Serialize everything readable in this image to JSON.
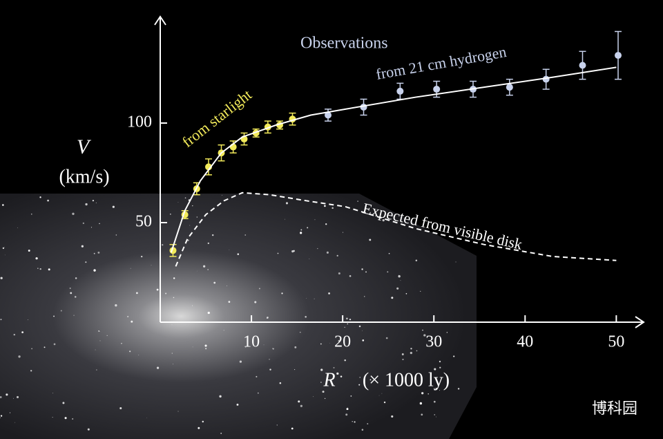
{
  "chart_data": {
    "type": "scatter",
    "annotation": "Observations",
    "ylabel": {
      "symbol": "V",
      "unit": "(km/s)"
    },
    "xlabel": {
      "symbol": "R",
      "unit": "(× 1000 ly)"
    },
    "watermark": "博科园",
    "xlim": [
      0,
      53
    ],
    "ylim": [
      0,
      150
    ],
    "xticks": [
      10,
      20,
      30,
      40,
      50
    ],
    "yticks": [
      50,
      100
    ],
    "series": [
      {
        "name": "from starlight",
        "color": "#f2ea5a",
        "kind": "points",
        "x": [
          1.4,
          2.7,
          4.0,
          5.3,
          6.7,
          8.0,
          9.2,
          10.5,
          11.8,
          13.1,
          14.5
        ],
        "values": [
          36,
          54,
          67,
          78,
          85,
          88,
          92,
          95,
          98,
          99,
          102
        ],
        "errors": [
          3,
          2,
          3,
          4,
          4,
          3,
          3,
          2,
          3,
          2,
          3
        ]
      },
      {
        "name": "from 21 cm hydrogen",
        "color": "#c8d2ec",
        "kind": "points",
        "x": [
          18.4,
          22.3,
          26.3,
          30.3,
          34.3,
          38.3,
          42.3,
          46.3,
          50.2
        ],
        "values": [
          104,
          108,
          116,
          117,
          117,
          118,
          122,
          129,
          134
        ],
        "errors": [
          3,
          4,
          4,
          4,
          4,
          4,
          5,
          7,
          12
        ]
      },
      {
        "color": "#ffffff",
        "kind": "line",
        "dash": false,
        "x": [
          1.2,
          2.7,
          4.4,
          6.7,
          9,
          12.7,
          16.5,
          20.3,
          28,
          35.5,
          43,
          50
        ],
        "values": [
          35,
          56,
          71,
          85,
          93,
          99,
          104,
          107,
          113,
          118,
          123,
          128
        ]
      },
      {
        "name": "Expected from visible disk",
        "color": "#ffffff",
        "kind": "line",
        "dash": true,
        "x": [
          1.7,
          3,
          5,
          7,
          9,
          12,
          16,
          20.3,
          28,
          35.5,
          43,
          50
        ],
        "values": [
          28,
          42,
          54,
          61,
          65,
          64,
          61,
          58,
          47,
          39,
          33,
          31
        ]
      }
    ]
  }
}
